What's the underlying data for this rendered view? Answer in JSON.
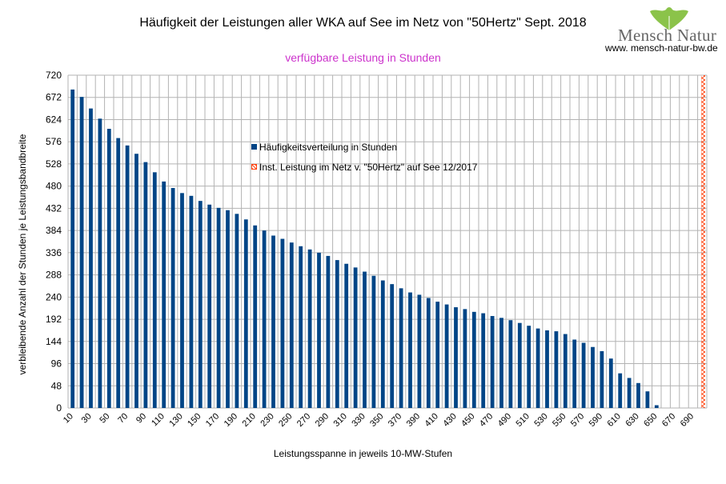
{
  "logo": {
    "text": "Mensch Natur",
    "url": "www. mensch-natur-bw.de"
  },
  "colors": {
    "bar": "#004586",
    "marker": "#ff420e",
    "grid": "#b3b3b3",
    "subtitle": "#cc33cc"
  },
  "chart_data": {
    "type": "bar",
    "title": "Häufigkeit der Leistungen aller WKA auf See im Netz von \"50Hertz\" Sept. 2018",
    "subtitle": "verfügbare Leistung in Stunden",
    "xlabel": "Leistungsspanne in jeweils 10-MW-Stufen",
    "ylabel": "verbleibende Anzahl der Stunden je Leistungsbandbreite",
    "ylim": [
      0,
      720
    ],
    "ytick_step": 48,
    "grid": true,
    "xtick_labels": [
      "10",
      "30",
      "50",
      "70",
      "90",
      "110",
      "130",
      "150",
      "170",
      "190",
      "210",
      "230",
      "250",
      "270",
      "290",
      "310",
      "330",
      "350",
      "370",
      "390",
      "410",
      "430",
      "450",
      "470",
      "490",
      "510",
      "530",
      "550",
      "570",
      "590",
      "610",
      "630",
      "650",
      "670",
      "690"
    ],
    "categories": [
      10,
      20,
      30,
      40,
      50,
      60,
      70,
      80,
      90,
      100,
      110,
      120,
      130,
      140,
      150,
      160,
      170,
      180,
      190,
      200,
      210,
      220,
      230,
      240,
      250,
      260,
      270,
      280,
      290,
      300,
      310,
      320,
      330,
      340,
      350,
      360,
      370,
      380,
      390,
      400,
      410,
      420,
      430,
      440,
      450,
      460,
      470,
      480,
      490,
      500,
      510,
      520,
      530,
      540,
      550,
      560,
      570,
      580,
      590,
      600,
      610,
      620,
      630,
      640,
      650,
      660,
      670,
      680,
      690,
      700
    ],
    "series": [
      {
        "name": "Häufigkeitsverteilung in Stunden",
        "type": "bar",
        "values": [
          689,
          673,
          648,
          626,
          604,
          584,
          568,
          550,
          532,
          510,
          490,
          476,
          465,
          459,
          448,
          440,
          433,
          428,
          420,
          408,
          395,
          384,
          373,
          366,
          358,
          350,
          343,
          336,
          329,
          320,
          312,
          304,
          295,
          286,
          276,
          268,
          259,
          250,
          245,
          238,
          230,
          224,
          218,
          214,
          208,
          205,
          199,
          195,
          190,
          184,
          178,
          172,
          168,
          166,
          160,
          148,
          141,
          132,
          123,
          107,
          75,
          65,
          54,
          36,
          6,
          0,
          0,
          0,
          0,
          0
        ]
      },
      {
        "name": "Inst. Leistung im Netz v. \"50Hertz\" auf See 12/2017",
        "type": "marker",
        "x": 701,
        "value": 720
      }
    ]
  }
}
